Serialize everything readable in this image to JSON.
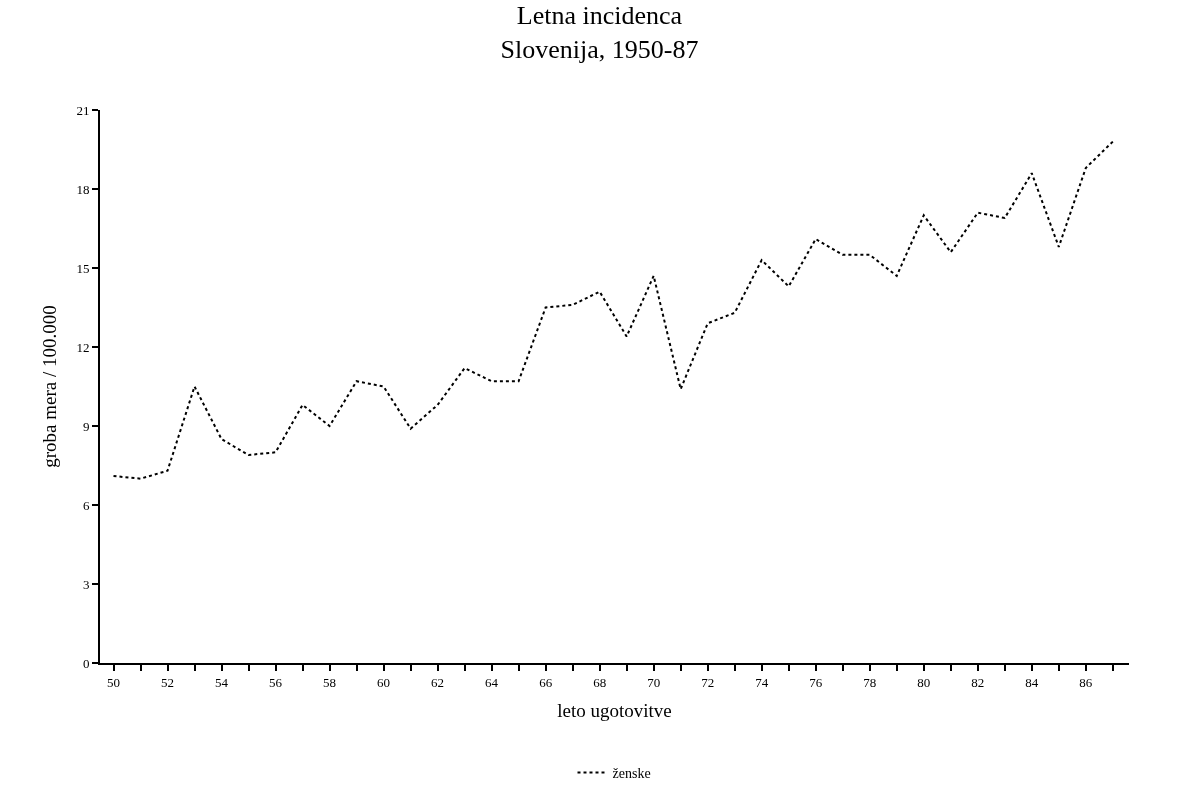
{
  "chart_data": {
    "type": "line",
    "title": "Letna incidenca\nSlovenija, 1950-87",
    "xlabel": "leto ugotovitve",
    "ylabel": "groba mera / 100.000",
    "x": [
      50,
      51,
      52,
      53,
      54,
      55,
      56,
      57,
      58,
      59,
      60,
      61,
      62,
      63,
      64,
      65,
      66,
      67,
      68,
      69,
      70,
      71,
      72,
      73,
      74,
      75,
      76,
      77,
      78,
      79,
      80,
      81,
      82,
      83,
      84,
      85,
      86,
      87
    ],
    "series": [
      {
        "name": "ženske",
        "color": "#000000",
        "values": [
          7.1,
          7.0,
          7.3,
          10.5,
          8.5,
          7.9,
          8.0,
          9.8,
          9.0,
          10.7,
          10.5,
          8.9,
          9.8,
          11.2,
          10.7,
          10.7,
          13.5,
          13.6,
          14.1,
          12.4,
          14.7,
          10.4,
          12.9,
          13.3,
          15.3,
          14.3,
          16.1,
          15.5,
          15.5,
          14.7,
          17.0,
          15.6,
          17.1,
          16.9,
          18.6,
          15.8,
          18.8,
          19.8
        ]
      }
    ],
    "xlim": [
      49.5,
      87.6
    ],
    "ylim": [
      0,
      21
    ],
    "xticks": [
      50,
      {
        "value": 51,
        "label": null
      },
      52,
      {
        "value": 53,
        "label": null
      },
      54,
      {
        "value": 55,
        "label": null
      },
      56,
      {
        "value": 57,
        "label": null
      },
      58,
      {
        "value": 59,
        "label": null
      },
      60,
      {
        "value": 61,
        "label": null
      },
      62,
      {
        "value": 63,
        "label": null
      },
      64,
      {
        "value": 65,
        "label": null
      },
      66,
      {
        "value": 67,
        "label": null
      },
      68,
      {
        "value": 69,
        "label": null
      },
      70,
      {
        "value": 71,
        "label": null
      },
      72,
      {
        "value": 73,
        "label": null
      },
      74,
      {
        "value": 75,
        "label": null
      },
      76,
      {
        "value": 77,
        "label": null
      },
      78,
      {
        "value": 79,
        "label": null
      },
      80,
      {
        "value": 81,
        "label": null
      },
      82,
      {
        "value": 83,
        "label": null
      },
      84,
      {
        "value": 85,
        "label": null
      },
      86,
      {
        "value": 87,
        "label": null
      }
    ],
    "yticks": [
      0,
      3,
      6,
      9,
      12,
      15,
      18,
      21
    ],
    "legend": "bottom",
    "marker": "none",
    "line_style": "dotted"
  }
}
